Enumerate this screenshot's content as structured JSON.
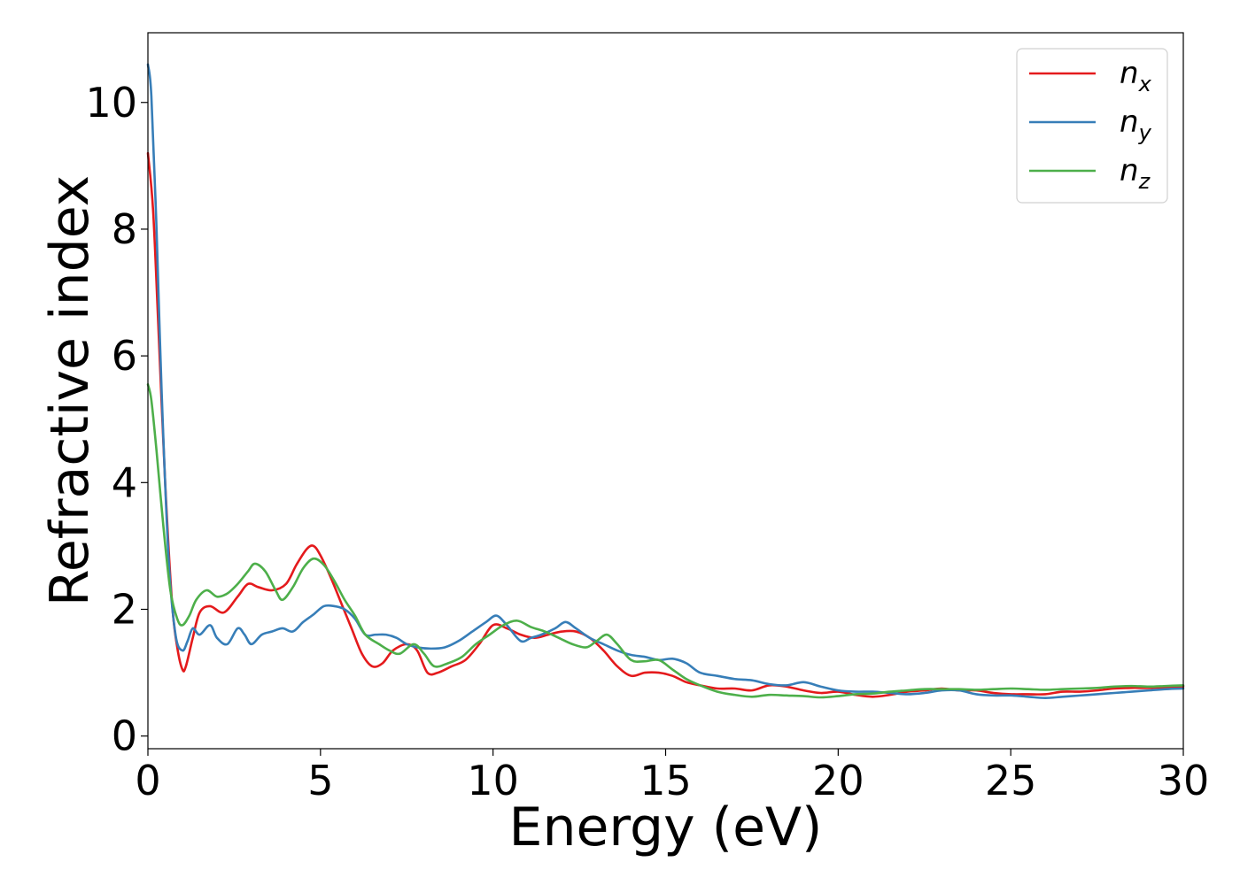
{
  "chart_data": {
    "type": "line",
    "title": "",
    "xlabel": "Energy (eV)",
    "ylabel": "Refractive index",
    "xlim": [
      0,
      30
    ],
    "ylim": [
      -0.2,
      11.1
    ],
    "xticks": [
      0,
      5,
      10,
      15,
      20,
      25,
      30
    ],
    "yticks": [
      0,
      2,
      4,
      6,
      8,
      10
    ],
    "grid": false,
    "legend_position": "top-right",
    "series": [
      {
        "name": "n_x",
        "label_base": "n",
        "label_sub": "x",
        "color": "#e41a1c",
        "x": [
          0,
          0.15,
          0.3,
          0.5,
          0.7,
          0.85,
          1.0,
          1.1,
          1.3,
          1.5,
          1.8,
          2.2,
          2.6,
          2.9,
          3.2,
          3.6,
          4.0,
          4.3,
          4.6,
          4.8,
          5.0,
          5.3,
          5.6,
          5.9,
          6.2,
          6.5,
          6.8,
          7.1,
          7.5,
          7.8,
          8.1,
          8.4,
          8.8,
          9.2,
          9.6,
          10.0,
          10.4,
          10.8,
          11.2,
          11.6,
          12.0,
          12.4,
          12.8,
          13.2,
          13.6,
          14.0,
          14.4,
          14.8,
          15.2,
          15.6,
          16.0,
          16.5,
          17.0,
          17.5,
          18.0,
          18.5,
          19.0,
          19.5,
          20.0,
          20.5,
          21.0,
          21.5,
          22.0,
          22.5,
          23.0,
          23.5,
          24.0,
          24.5,
          25.0,
          25.5,
          26.0,
          26.5,
          27.0,
          27.5,
          28.0,
          28.5,
          29.0,
          29.5,
          30.0
        ],
        "y": [
          9.2,
          8.3,
          6.5,
          4.0,
          2.1,
          1.4,
          1.05,
          1.1,
          1.55,
          1.95,
          2.05,
          1.95,
          2.2,
          2.4,
          2.35,
          2.3,
          2.4,
          2.7,
          2.95,
          3.0,
          2.85,
          2.5,
          2.1,
          1.7,
          1.3,
          1.1,
          1.15,
          1.35,
          1.45,
          1.35,
          1.0,
          1.0,
          1.1,
          1.2,
          1.45,
          1.75,
          1.7,
          1.6,
          1.55,
          1.6,
          1.65,
          1.65,
          1.55,
          1.35,
          1.1,
          0.95,
          1.0,
          1.0,
          0.95,
          0.85,
          0.8,
          0.75,
          0.75,
          0.72,
          0.8,
          0.78,
          0.72,
          0.68,
          0.7,
          0.65,
          0.62,
          0.65,
          0.7,
          0.72,
          0.75,
          0.72,
          0.72,
          0.68,
          0.66,
          0.66,
          0.66,
          0.7,
          0.7,
          0.72,
          0.75,
          0.76,
          0.76,
          0.77,
          0.78
        ]
      },
      {
        "name": "n_y",
        "label_base": "n",
        "label_sub": "y",
        "color": "#377eb8",
        "x": [
          0,
          0.1,
          0.25,
          0.4,
          0.6,
          0.8,
          1.0,
          1.15,
          1.3,
          1.5,
          1.8,
          2.0,
          2.3,
          2.6,
          2.8,
          3.0,
          3.3,
          3.6,
          3.9,
          4.2,
          4.5,
          4.8,
          5.1,
          5.4,
          5.7,
          6.0,
          6.3,
          6.6,
          6.9,
          7.2,
          7.5,
          7.8,
          8.2,
          8.6,
          9.0,
          9.4,
          9.8,
          10.1,
          10.4,
          10.8,
          11.1,
          11.4,
          11.8,
          12.1,
          12.4,
          12.8,
          13.2,
          13.6,
          14.0,
          14.4,
          14.8,
          15.2,
          15.6,
          16.0,
          16.5,
          17.0,
          17.5,
          18.0,
          18.5,
          19.0,
          19.5,
          20.0,
          20.5,
          21.0,
          21.5,
          22.0,
          22.5,
          23.0,
          23.5,
          24.0,
          24.5,
          25.0,
          25.5,
          26.0,
          26.5,
          27.0,
          27.5,
          28.0,
          28.5,
          29.0,
          29.5,
          30.0
        ],
        "y": [
          10.6,
          10.1,
          8.0,
          5.4,
          2.8,
          1.6,
          1.35,
          1.5,
          1.7,
          1.6,
          1.75,
          1.55,
          1.45,
          1.7,
          1.6,
          1.45,
          1.6,
          1.65,
          1.7,
          1.65,
          1.8,
          1.92,
          2.05,
          2.05,
          2.0,
          1.85,
          1.6,
          1.6,
          1.6,
          1.55,
          1.45,
          1.4,
          1.38,
          1.4,
          1.5,
          1.65,
          1.8,
          1.9,
          1.75,
          1.5,
          1.55,
          1.6,
          1.7,
          1.8,
          1.7,
          1.55,
          1.45,
          1.35,
          1.28,
          1.25,
          1.2,
          1.22,
          1.15,
          1.0,
          0.95,
          0.9,
          0.88,
          0.82,
          0.8,
          0.85,
          0.78,
          0.72,
          0.7,
          0.7,
          0.68,
          0.66,
          0.68,
          0.72,
          0.72,
          0.66,
          0.64,
          0.64,
          0.62,
          0.6,
          0.62,
          0.64,
          0.66,
          0.68,
          0.7,
          0.72,
          0.74,
          0.75
        ]
      },
      {
        "name": "n_z",
        "label_base": "n",
        "label_sub": "z",
        "color": "#4daf4a",
        "x": [
          0,
          0.1,
          0.25,
          0.45,
          0.65,
          0.85,
          1.0,
          1.2,
          1.4,
          1.7,
          2.0,
          2.3,
          2.6,
          2.9,
          3.1,
          3.4,
          3.7,
          3.9,
          4.2,
          4.5,
          4.8,
          5.1,
          5.4,
          5.7,
          6.0,
          6.3,
          6.7,
          7.0,
          7.3,
          7.7,
          8.0,
          8.3,
          8.7,
          9.1,
          9.5,
          9.9,
          10.3,
          10.7,
          11.1,
          11.5,
          11.9,
          12.3,
          12.7,
          13.0,
          13.3,
          13.6,
          14.0,
          14.4,
          14.8,
          15.2,
          15.6,
          16.0,
          16.5,
          17.0,
          17.5,
          18.0,
          18.5,
          19.0,
          19.5,
          20.0,
          20.5,
          21.0,
          21.5,
          22.0,
          22.5,
          23.0,
          23.5,
          24.0,
          24.5,
          25.0,
          25.5,
          26.0,
          26.5,
          27.0,
          27.5,
          28.0,
          28.5,
          29.0,
          29.5,
          30.0
        ],
        "y": [
          5.55,
          5.3,
          4.5,
          3.3,
          2.3,
          1.85,
          1.75,
          1.9,
          2.15,
          2.3,
          2.2,
          2.25,
          2.4,
          2.6,
          2.72,
          2.6,
          2.3,
          2.15,
          2.35,
          2.65,
          2.8,
          2.7,
          2.45,
          2.15,
          1.9,
          1.6,
          1.45,
          1.35,
          1.3,
          1.45,
          1.3,
          1.1,
          1.15,
          1.25,
          1.45,
          1.6,
          1.75,
          1.82,
          1.72,
          1.65,
          1.55,
          1.45,
          1.4,
          1.5,
          1.6,
          1.45,
          1.2,
          1.18,
          1.2,
          1.05,
          0.9,
          0.8,
          0.7,
          0.65,
          0.62,
          0.65,
          0.64,
          0.63,
          0.61,
          0.63,
          0.66,
          0.67,
          0.7,
          0.72,
          0.74,
          0.74,
          0.74,
          0.73,
          0.74,
          0.75,
          0.74,
          0.73,
          0.74,
          0.75,
          0.76,
          0.78,
          0.79,
          0.78,
          0.79,
          0.8
        ]
      }
    ]
  }
}
